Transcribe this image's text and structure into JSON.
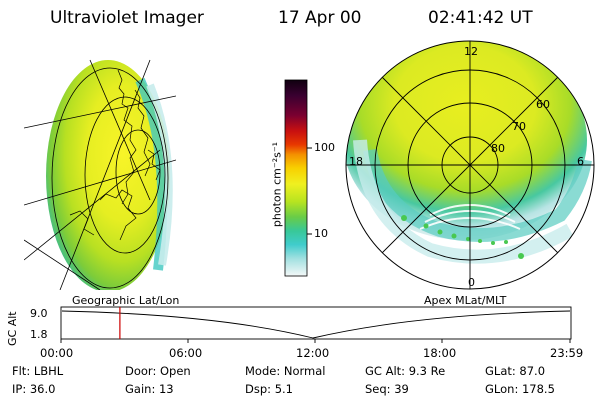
{
  "header": {
    "instrument": "Ultraviolet Imager",
    "date": "17 Apr 00",
    "time": "02:41:42 UT"
  },
  "colorbar": {
    "unit_label": "photon cm⁻²s⁻¹",
    "ticks": [
      "100",
      "10"
    ],
    "colors_top_to_bottom": [
      "#100010",
      "#3a0030",
      "#7a0030",
      "#b00010",
      "#e03000",
      "#f48c00",
      "#f8d000",
      "#f0f020",
      "#c8e820",
      "#80d040",
      "#40c878",
      "#30c8c8",
      "#80dcdc",
      "#c8ecec",
      "#f4f8f8"
    ]
  },
  "right_image": {
    "mlt_labels": [
      "12",
      "18",
      "6",
      "0"
    ],
    "mlat_labels": [
      "60",
      "70",
      "80"
    ]
  },
  "timeline": {
    "left_label": "Geographic Lat/Lon",
    "right_label": "Apex MLat/MLT",
    "y_axis_label": "GC Alt",
    "y_ticks": [
      "9.0",
      "1.8"
    ],
    "x_ticks": [
      "00:00",
      "06:00",
      "12:00",
      "18:00",
      "23:59"
    ],
    "current_time_fraction": 0.1157,
    "marker_color": "#cc0000"
  },
  "status": {
    "row1": [
      {
        "label": "Flt:",
        "value": "LBHL"
      },
      {
        "label": "Door:",
        "value": "Open"
      },
      {
        "label": "Mode:",
        "value": "Normal"
      },
      {
        "label": "GC Alt:",
        "value": "9.3 Re"
      },
      {
        "label": "GLat:",
        "value": "87.0"
      }
    ],
    "row2": [
      {
        "label": "IP:",
        "value": "36.0"
      },
      {
        "label": "Gain:",
        "value": "13"
      },
      {
        "label": "Dsp:",
        "value": "5.1"
      },
      {
        "label": "Seq:",
        "value": "39"
      },
      {
        "label": "GLon:",
        "value": "178.5"
      }
    ]
  }
}
